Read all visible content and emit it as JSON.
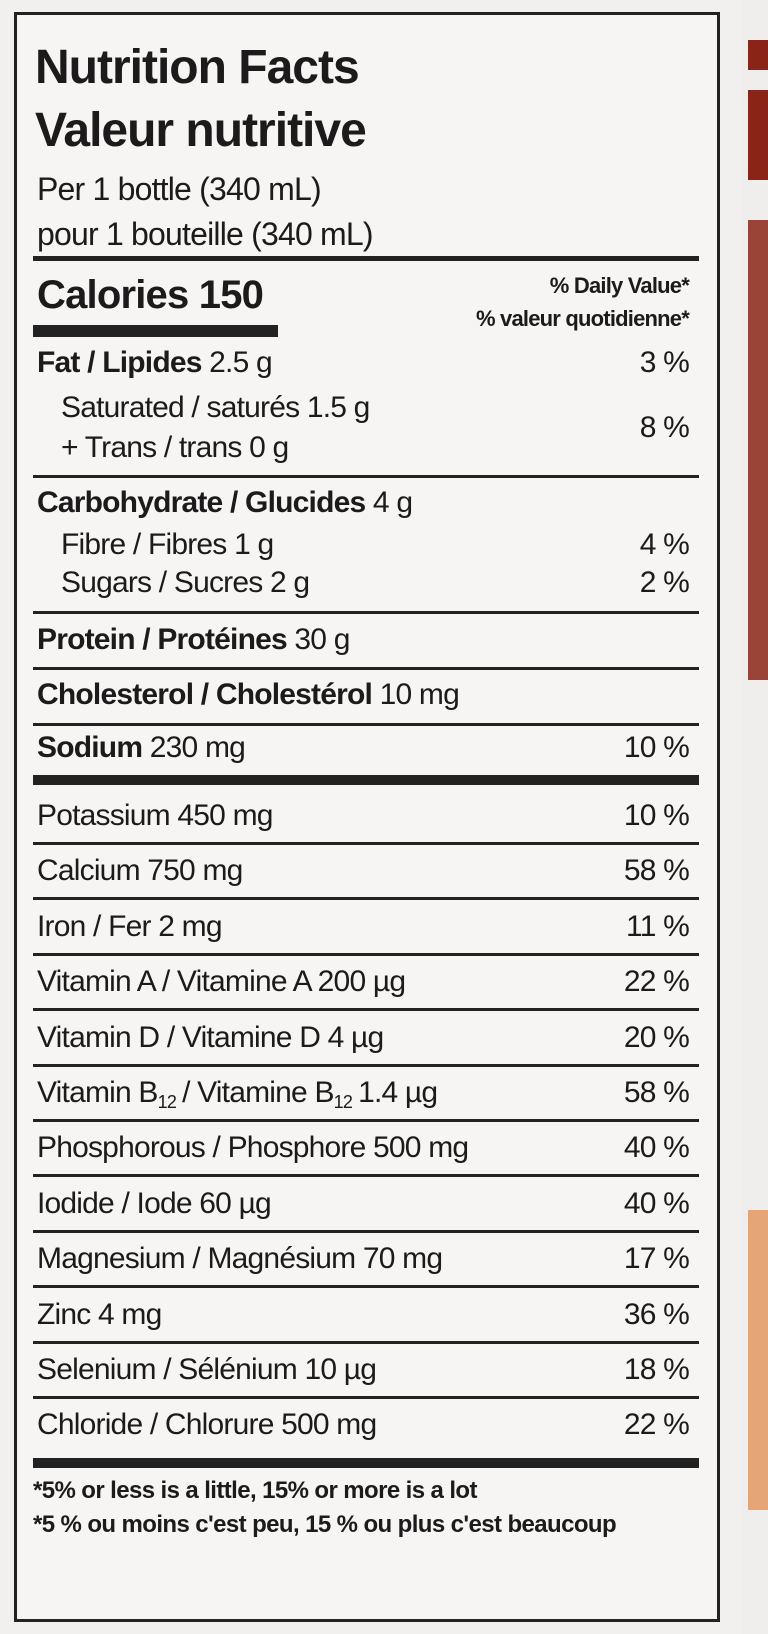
{
  "title": "Nutrition Facts",
  "title_fr": "Valeur nutritive",
  "serving": "Per 1 bottle (340 mL)",
  "serving_fr": "pour 1 bouteille (340 mL)",
  "calories": {
    "label": "Calories",
    "amount": "150"
  },
  "dv_header": "% Daily Value*",
  "dv_header_fr": "% valeur quotidienne*",
  "fat": {
    "name": "Fat / Lipides",
    "amount": "2.5 g",
    "dv": "3 %"
  },
  "saturated": {
    "name": "Saturated / saturés",
    "amount": "1.5 g"
  },
  "trans": {
    "name": "+ Trans / trans",
    "amount": "0 g"
  },
  "saturated_trans_dv": "8 %",
  "carbohydrate": {
    "name": "Carbohydrate / Glucides",
    "amount": "4 g"
  },
  "fibre": {
    "name": "Fibre / Fibres",
    "amount": "1 g",
    "dv": "4 %"
  },
  "sugars": {
    "name": "Sugars / Sucres",
    "amount": "2 g",
    "dv": "2 %"
  },
  "protein": {
    "name": "Protein / Protéines",
    "amount": "30 g"
  },
  "cholesterol": {
    "name": "Cholesterol / Cholestérol",
    "amount": "10 mg"
  },
  "sodium": {
    "name": "Sodium",
    "amount": "230 mg",
    "dv": "10 %"
  },
  "minerals": [
    {
      "label": "Potassium 450 mg",
      "dv": "10 %"
    },
    {
      "label": "Calcium 750 mg",
      "dv": "58 %"
    },
    {
      "label": "Iron / Fer 2 mg",
      "dv": "11 %"
    },
    {
      "label": "Vitamin A / Vitamine A 200 µg",
      "dv": "22 %"
    },
    {
      "label": "Vitamin D / Vitamine D 4 µg",
      "dv": "20 %"
    },
    {
      "label_parts": [
        "Vitamin B",
        "12",
        "/ Vitamine B",
        "12",
        "1.4 µg"
      ],
      "dv": "58 %"
    },
    {
      "label": "Phosphorous / Phosphore 500 mg",
      "dv": "40 %"
    },
    {
      "label": "Iodide / Iode 60 µg",
      "dv": "40 %"
    },
    {
      "label": "Magnesium / Magnésium 70 mg",
      "dv": "17 %"
    },
    {
      "label": "Zinc 4 mg",
      "dv": "36 %"
    },
    {
      "label": "Selenium / Sélénium 10 µg",
      "dv": "18 %"
    },
    {
      "label": "Chloride / Chlorure 500 mg",
      "dv": "22 %"
    }
  ],
  "footnotes": [
    "*5% or less is a little, 15% or more is a lot",
    "*5 % ou moins c'est peu, 15 % ou plus c'est beaucoup"
  ]
}
